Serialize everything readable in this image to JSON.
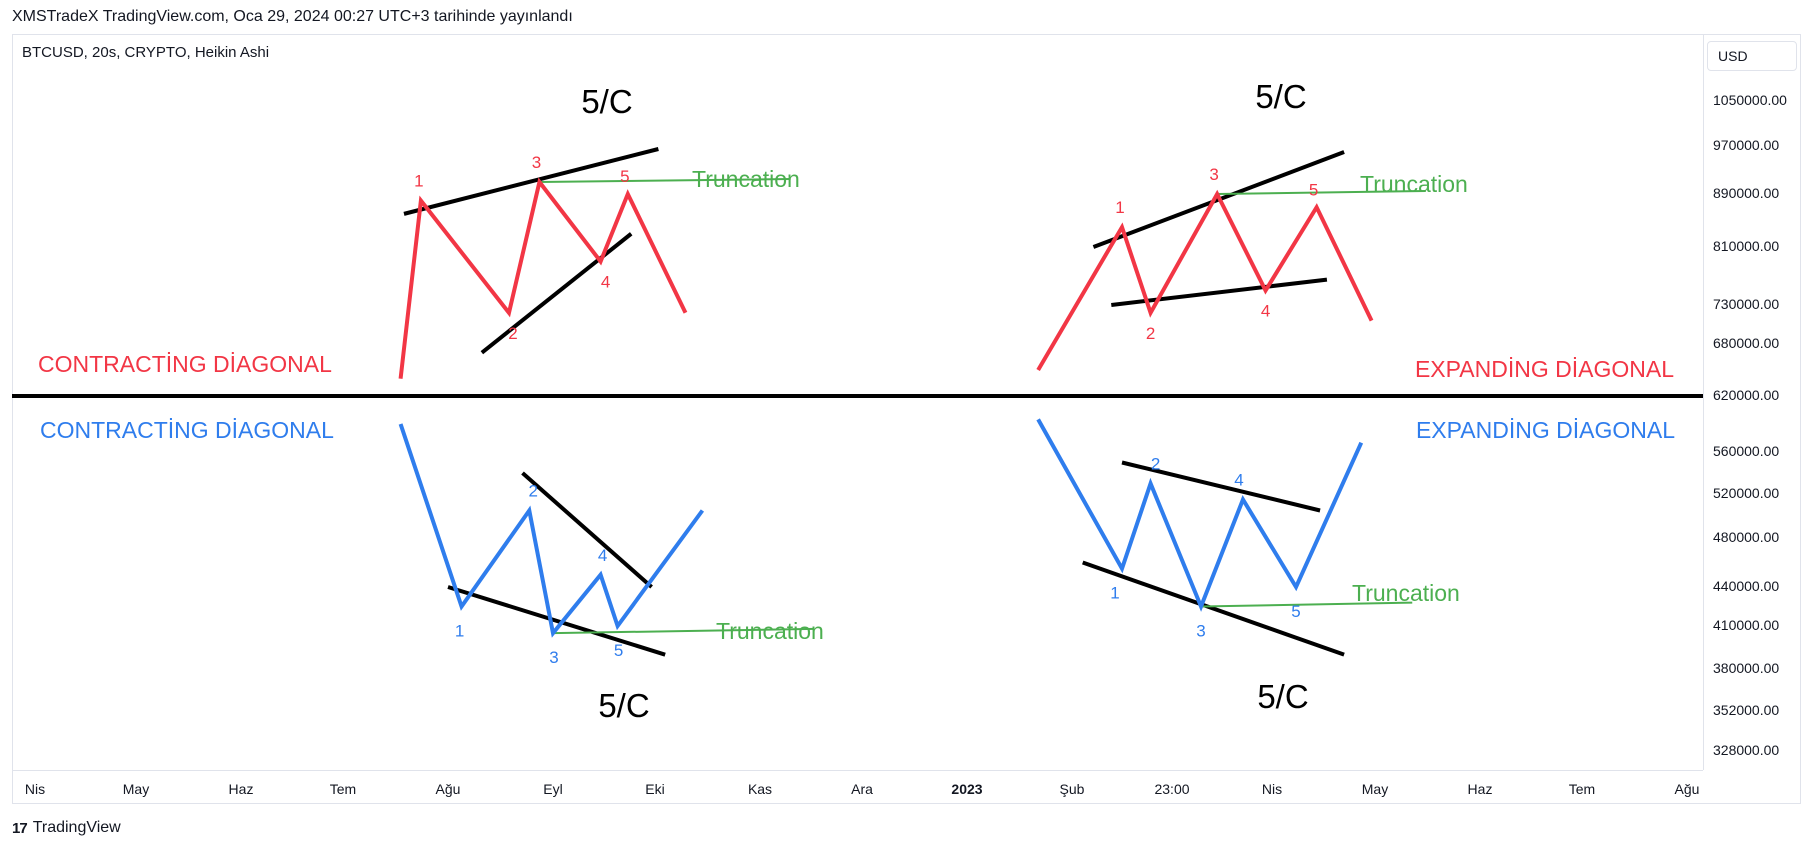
{
  "header": {
    "published": "XMSTradeX TradingView.com, Oca 29, 2024 00:27 UTC+3 tarihinde yayınlandı"
  },
  "chart_info": {
    "symbol": "BTCUSD, 20s, CRYPTO, Heikin Ashi",
    "currency": "USD"
  },
  "footer": {
    "brand": "TradingView",
    "logo_mark": "17"
  },
  "colors": {
    "red": "#f23645",
    "blue": "#2f7ded",
    "green": "#4caf50",
    "black": "#000000"
  },
  "chart_data": {
    "type": "line",
    "price_ticks": [
      "1050000.00",
      "970000.00",
      "890000.00",
      "810000.00",
      "730000.00",
      "680000.00",
      "620000.00",
      "560000.00",
      "520000.00",
      "480000.00",
      "440000.00",
      "410000.00",
      "380000.00",
      "352000.00",
      "328000.00"
    ],
    "time_ticks": [
      {
        "label": "Nis",
        "bold": false
      },
      {
        "label": "May",
        "bold": false
      },
      {
        "label": "Haz",
        "bold": false
      },
      {
        "label": "Tem",
        "bold": false
      },
      {
        "label": "Ağu",
        "bold": false
      },
      {
        "label": "Eyl",
        "bold": false
      },
      {
        "label": "Eki",
        "bold": false
      },
      {
        "label": "Kas",
        "bold": false
      },
      {
        "label": "Ara",
        "bold": false
      },
      {
        "label": "2023",
        "bold": true
      },
      {
        "label": "Şub",
        "bold": false
      },
      {
        "label": "23:00",
        "bold": false
      },
      {
        "label": "Nis",
        "bold": false
      },
      {
        "label": "May",
        "bold": false
      },
      {
        "label": "Haz",
        "bold": false
      },
      {
        "label": "Tem",
        "bold": false
      },
      {
        "label": "Ağu",
        "bold": false
      }
    ],
    "divider_price": 620000,
    "titles": {
      "top_left": "CONTRACTİNG DİAGONAL",
      "top_right": "EXPANDİNG DİAGONAL",
      "bottom_left": "CONTRACTİNG DİAGONAL",
      "bottom_right": "EXPANDİNG DİAGONAL"
    },
    "annotations": {
      "wave_c": "5/C",
      "truncation": "Truncation"
    },
    "series": [
      {
        "name": "Contracting Diagonal (up)",
        "color": "red",
        "points": [
          [
            "2022-07-18",
            640000
          ],
          [
            "2022-07-24",
            880000
          ],
          [
            "2022-08-19",
            720000
          ],
          [
            "2022-08-28",
            910000
          ],
          [
            "2022-09-15",
            790000
          ],
          [
            "2022-09-23",
            890000
          ],
          [
            "2022-10-10",
            720000
          ]
        ],
        "labels": [
          "1",
          "2",
          "3",
          "4",
          "5"
        ]
      },
      {
        "name": "Expanding Diagonal (up)",
        "color": "red",
        "points": [
          [
            "2023-01-22",
            650000
          ],
          [
            "2023-02-15",
            840000
          ],
          [
            "2023-02-23",
            720000
          ],
          [
            "2023-03-15",
            890000
          ],
          [
            "2023-03-30",
            750000
          ],
          [
            "2023-04-14",
            870000
          ],
          [
            "2023-04-30",
            710000
          ]
        ],
        "labels": [
          "1",
          "2",
          "3",
          "4",
          "5"
        ]
      },
      {
        "name": "Contracting Diagonal (down)",
        "color": "blue",
        "points": [
          [
            "2022-07-18",
            590000
          ],
          [
            "2022-08-05",
            425000
          ],
          [
            "2022-08-25",
            505000
          ],
          [
            "2022-09-01",
            405000
          ],
          [
            "2022-09-15",
            450000
          ],
          [
            "2022-09-20",
            410000
          ],
          [
            "2022-10-15",
            505000
          ]
        ],
        "labels": [
          "1",
          "2",
          "3",
          "4",
          "5"
        ]
      },
      {
        "name": "Expanding Diagonal (down)",
        "color": "blue",
        "points": [
          [
            "2023-01-22",
            595000
          ],
          [
            "2023-02-15",
            455000
          ],
          [
            "2023-02-23",
            530000
          ],
          [
            "2023-03-10",
            425000
          ],
          [
            "2023-03-23",
            515000
          ],
          [
            "2023-04-08",
            440000
          ],
          [
            "2023-04-27",
            570000
          ]
        ],
        "labels": [
          "1",
          "2",
          "3",
          "4",
          "5"
        ]
      }
    ]
  }
}
